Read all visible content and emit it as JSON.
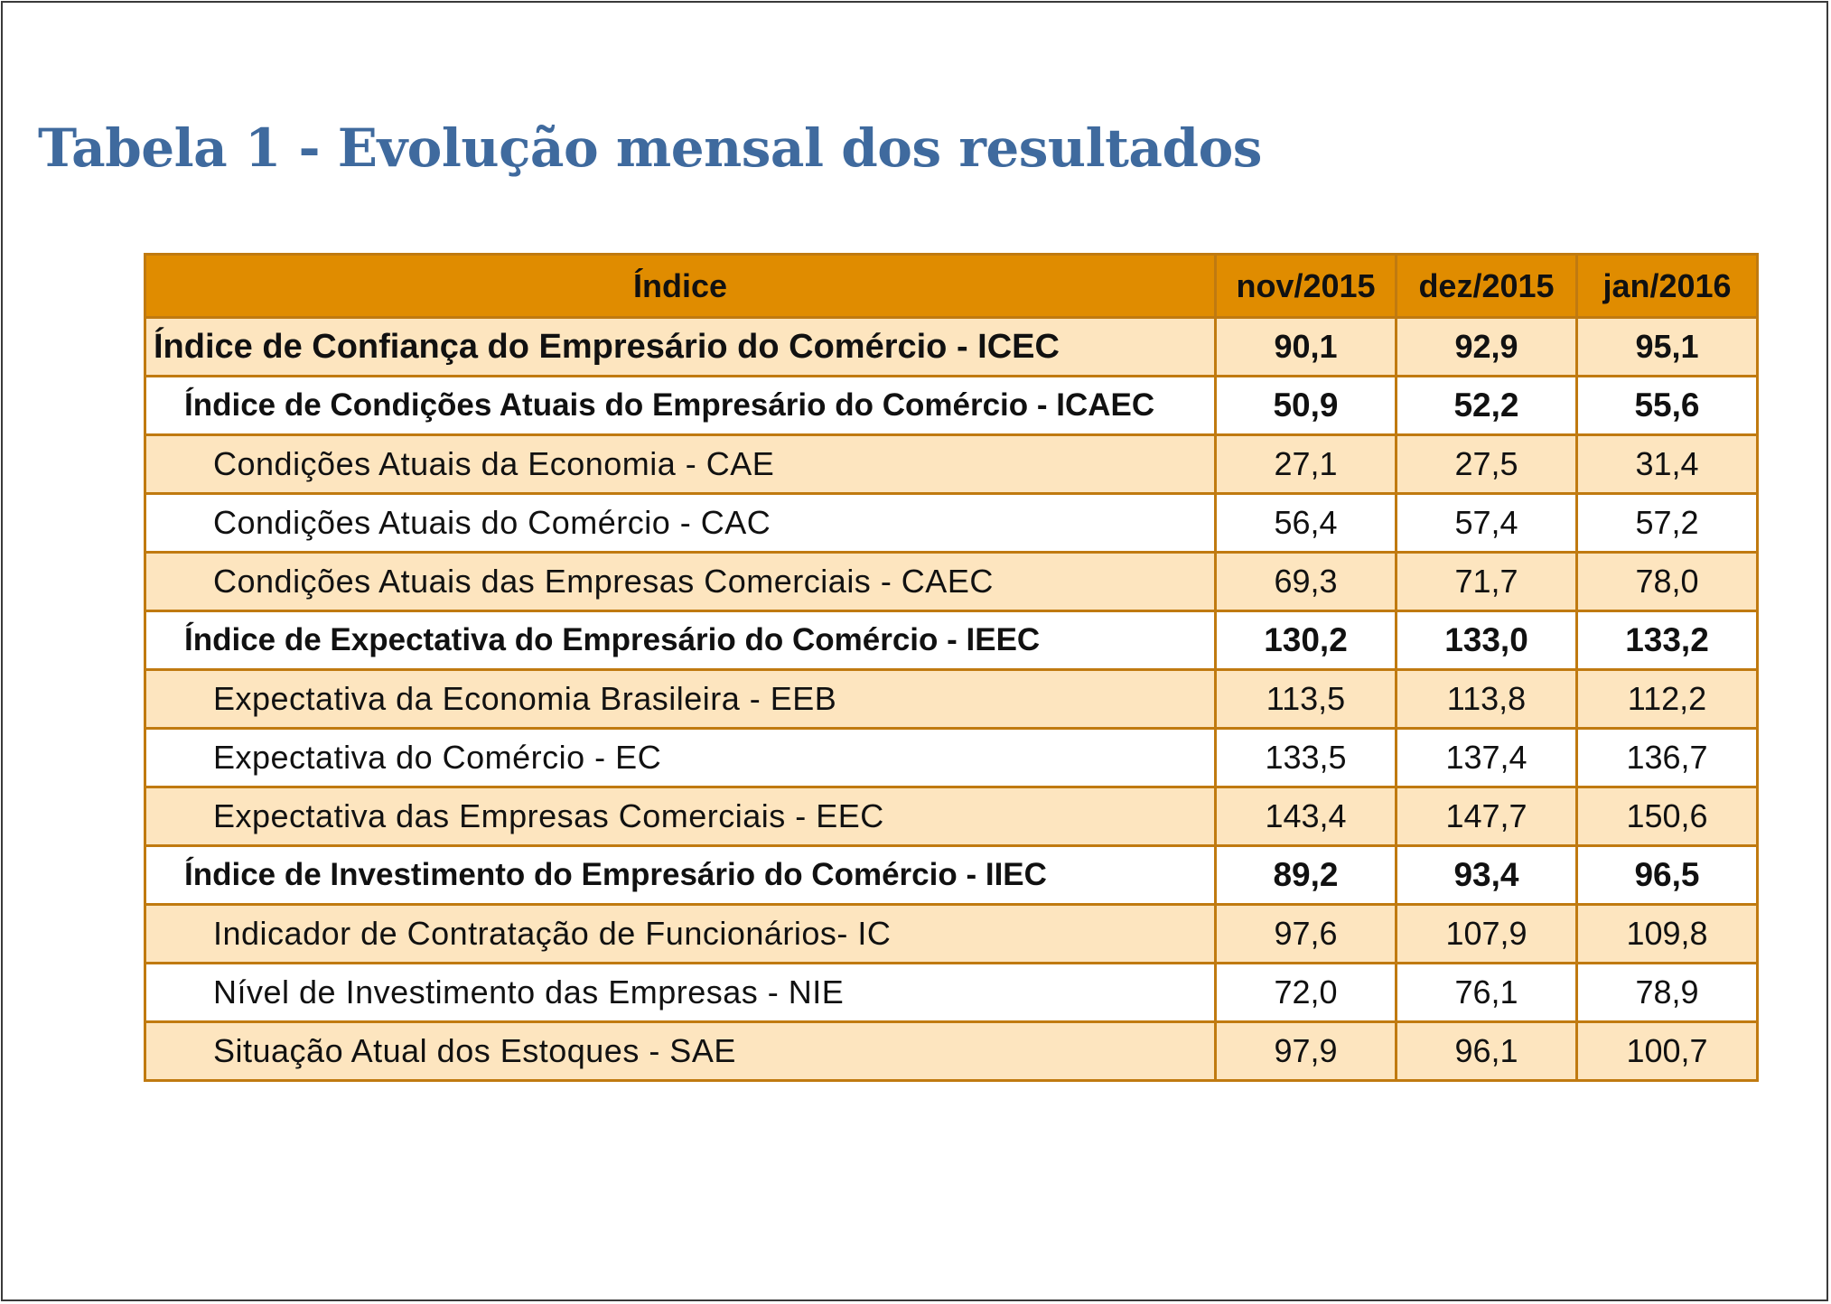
{
  "title": "Tabela 1 - Evolução mensal dos resultados",
  "table": {
    "headers": [
      "Índice",
      "nov/2015",
      "dez/2015",
      "jan/2016"
    ],
    "rows": [
      {
        "label": "Índice de Confiança do Empresário do Comércio - ICEC",
        "level": 0,
        "values": [
          "90,1",
          "92,9",
          "95,1"
        ]
      },
      {
        "label": "Índice de Condições Atuais do Empresário do Comércio - ICAEC",
        "level": 1,
        "values": [
          "50,9",
          "52,2",
          "55,6"
        ]
      },
      {
        "label": "Condições Atuais da Economia - CAE",
        "level": 2,
        "values": [
          "27,1",
          "27,5",
          "31,4"
        ]
      },
      {
        "label": "Condições Atuais do Comércio - CAC",
        "level": 2,
        "values": [
          "56,4",
          "57,4",
          "57,2"
        ]
      },
      {
        "label": "Condições Atuais das Empresas Comerciais - CAEC",
        "level": 2,
        "values": [
          "69,3",
          "71,7",
          "78,0"
        ]
      },
      {
        "label": "Índice de Expectativa do Empresário do Comércio - IEEC",
        "level": 1,
        "values": [
          "130,2",
          "133,0",
          "133,2"
        ]
      },
      {
        "label": "Expectativa da Economia Brasileira - EEB",
        "level": 2,
        "values": [
          "113,5",
          "113,8",
          "112,2"
        ]
      },
      {
        "label": "Expectativa do Comércio - EC",
        "level": 2,
        "values": [
          "133,5",
          "137,4",
          "136,7"
        ]
      },
      {
        "label": "Expectativa das Empresas Comerciais - EEC",
        "level": 2,
        "values": [
          "143,4",
          "147,7",
          "150,6"
        ]
      },
      {
        "label": "Índice de Investimento do Empresário do Comércio - IIEC",
        "level": 1,
        "values": [
          "89,2",
          "93,4",
          "96,5"
        ]
      },
      {
        "label": "Indicador de Contratação de Funcionários- IC",
        "level": 2,
        "values": [
          "97,6",
          "107,9",
          "109,8"
        ]
      },
      {
        "label": "Nível de Investimento das Empresas - NIE",
        "level": 2,
        "values": [
          "72,0",
          "76,1",
          "78,9"
        ]
      },
      {
        "label": "Situação Atual dos Estoques - SAE",
        "level": 2,
        "values": [
          "97,9",
          "96,1",
          "100,7"
        ]
      }
    ]
  },
  "colors": {
    "title": "#3f6a9e",
    "header_bg": "#e08c00",
    "row_alt_bg": "#fde5bf",
    "border": "#c07a10"
  }
}
